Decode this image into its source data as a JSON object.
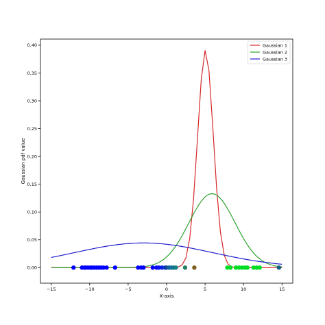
{
  "chart_data": {
    "type": "line",
    "title": "",
    "xlabel": "X-axis",
    "ylabel": "Gaussian pdf value",
    "xlim": [
      -16.4,
      16.4
    ],
    "ylim": [
      -0.028,
      0.411
    ],
    "x_ticks": [
      -15,
      -10,
      -5,
      0,
      5,
      10,
      15
    ],
    "x_tick_labels": [
      "−15",
      "−10",
      "−5",
      "0",
      "5",
      "10",
      "15"
    ],
    "y_ticks": [
      0.0,
      0.05,
      0.1,
      0.15,
      0.2,
      0.25,
      0.3,
      0.35,
      0.4
    ],
    "y_tick_labels": [
      "0.00",
      "0.05",
      "0.10",
      "0.15",
      "0.20",
      "0.25",
      "0.30",
      "0.35",
      "0.40"
    ],
    "grid": false,
    "legend_position": "top-right",
    "series": [
      {
        "name": "Gaussian 1",
        "color": "#d62728",
        "kind": "gaussian",
        "mean": 5.05,
        "std": 1.02,
        "x_from": -15,
        "x_to": 15,
        "samples": 60
      },
      {
        "name": "Gaussian 2",
        "color": "#2ca02c",
        "kind": "gaussian",
        "mean": 5.9,
        "std": 3.0,
        "x_from": -15,
        "x_to": 15,
        "samples": 120
      },
      {
        "name": "Gaussian 3",
        "color": "#1f1fd0",
        "kind": "gaussian",
        "mean": -3.0,
        "std": 9.0,
        "x_from": -15,
        "x_to": 15,
        "samples": 120
      }
    ],
    "points": [
      {
        "x": -12.1,
        "color": "#0000ff"
      },
      {
        "x": -11.0,
        "color": "#0000ff"
      },
      {
        "x": -10.7,
        "color": "#0000ff"
      },
      {
        "x": -10.5,
        "color": "#0000ff"
      },
      {
        "x": -10.2,
        "color": "#0000ff"
      },
      {
        "x": -9.9,
        "color": "#0000ff"
      },
      {
        "x": -9.7,
        "color": "#0000ff"
      },
      {
        "x": -9.4,
        "color": "#0000ff"
      },
      {
        "x": -9.1,
        "color": "#0000ff"
      },
      {
        "x": -8.8,
        "color": "#0000ff"
      },
      {
        "x": -8.5,
        "color": "#0000ff"
      },
      {
        "x": -8.2,
        "color": "#0000ff"
      },
      {
        "x": -7.8,
        "color": "#0000ff"
      },
      {
        "x": -6.7,
        "color": "#0000ff"
      },
      {
        "x": -3.7,
        "color": "#0000ff"
      },
      {
        "x": -3.3,
        "color": "#0000ff"
      },
      {
        "x": -3.0,
        "color": "#0000ff"
      },
      {
        "x": -1.8,
        "color": "#0000ff"
      },
      {
        "x": -1.3,
        "color": "#0000ff"
      },
      {
        "x": -1.0,
        "color": "#0a10f0"
      },
      {
        "x": -0.6,
        "color": "#0a20e0"
      },
      {
        "x": -0.2,
        "color": "#0a30d0"
      },
      {
        "x": 0.0,
        "color": "#104090"
      },
      {
        "x": 0.3,
        "color": "#1060a0"
      },
      {
        "x": 0.6,
        "color": "#1070a0"
      },
      {
        "x": 0.9,
        "color": "#107090"
      },
      {
        "x": 1.2,
        "color": "#108080"
      },
      {
        "x": 2.4,
        "color": "#208060"
      },
      {
        "x": 3.6,
        "color": "#806020"
      },
      {
        "x": 7.9,
        "color": "#00dd22"
      },
      {
        "x": 8.3,
        "color": "#00dd22"
      },
      {
        "x": 9.0,
        "color": "#00dd22"
      },
      {
        "x": 9.4,
        "color": "#00dd22"
      },
      {
        "x": 9.8,
        "color": "#00dd22"
      },
      {
        "x": 10.2,
        "color": "#00dd22"
      },
      {
        "x": 10.5,
        "color": "#00dd22"
      },
      {
        "x": 11.3,
        "color": "#00dd22"
      },
      {
        "x": 11.7,
        "color": "#00dd22"
      },
      {
        "x": 12.1,
        "color": "#00dd22"
      },
      {
        "x": 14.6,
        "color": "#106080"
      }
    ],
    "points_y": 0.0
  }
}
